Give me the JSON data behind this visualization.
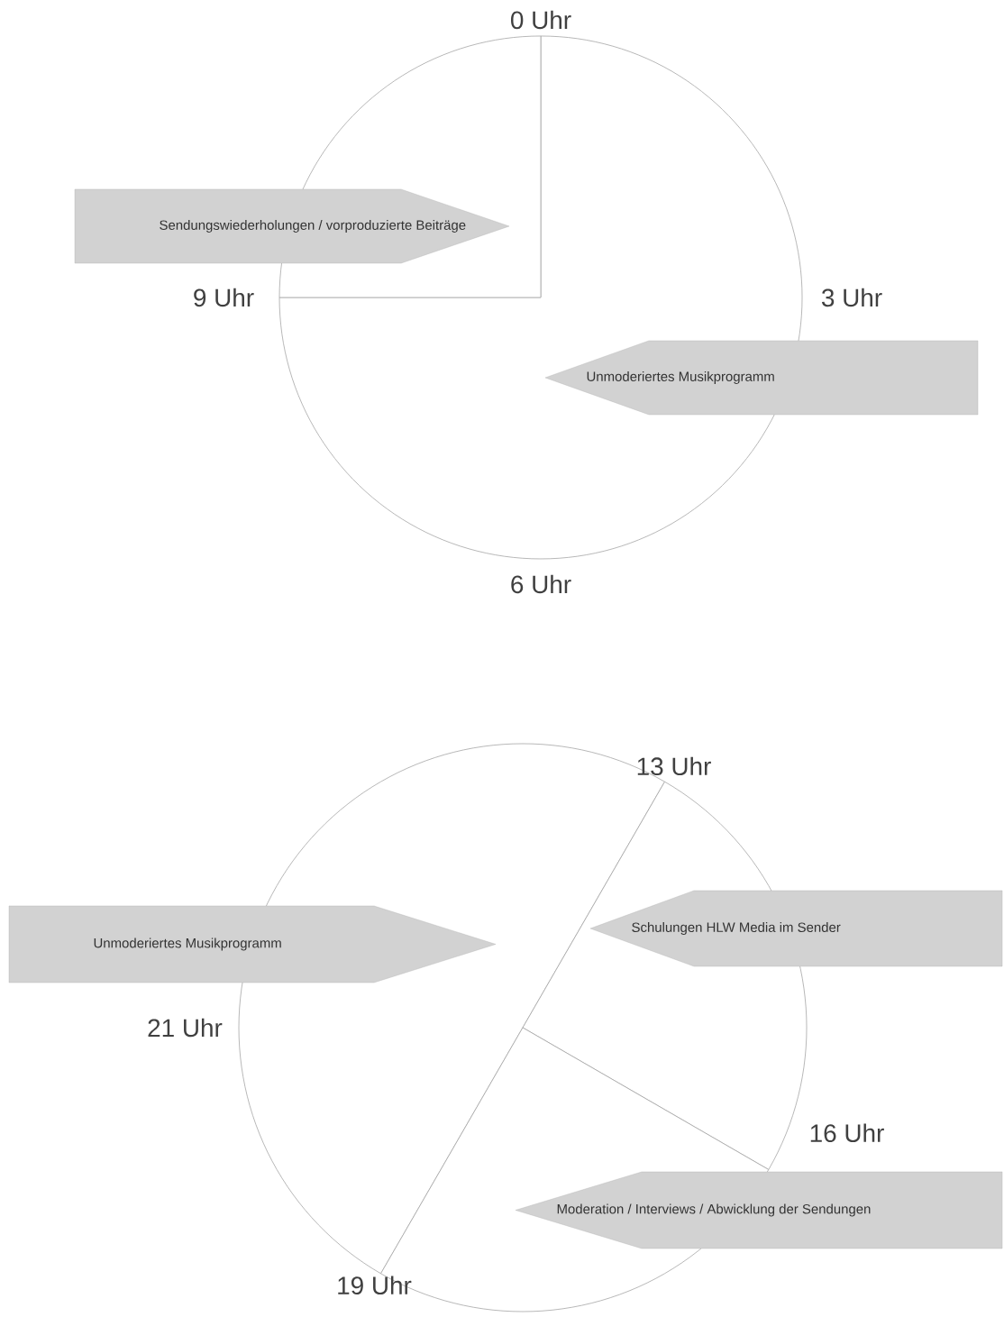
{
  "chart_data": [
    {
      "type": "pie",
      "categories": [
        "Unmoderiertes Musikprogramm",
        "Sendungswiederholungen / vorproduzierte Beiträge"
      ],
      "values": [
        75,
        25
      ],
      "colors": [
        "#ffffff",
        "#ffffff"
      ],
      "annotations": [
        "0 Uhr",
        "3 Uhr",
        "6 Uhr",
        "9 Uhr"
      ]
    },
    {
      "type": "pie",
      "categories": [
        "Unmoderiertes Musikprogramm",
        "Schulungen HLW Media im Sender",
        "Moderation / Interviews / Abwicklung der Sendungen"
      ],
      "values": [
        50,
        25,
        25
      ],
      "colors": [
        "#ffffff",
        "#ffffff",
        "#ffffff"
      ],
      "annotations": [
        "13 Uhr",
        "16 Uhr",
        "19 Uhr",
        "21 Uhr"
      ]
    }
  ]
}
